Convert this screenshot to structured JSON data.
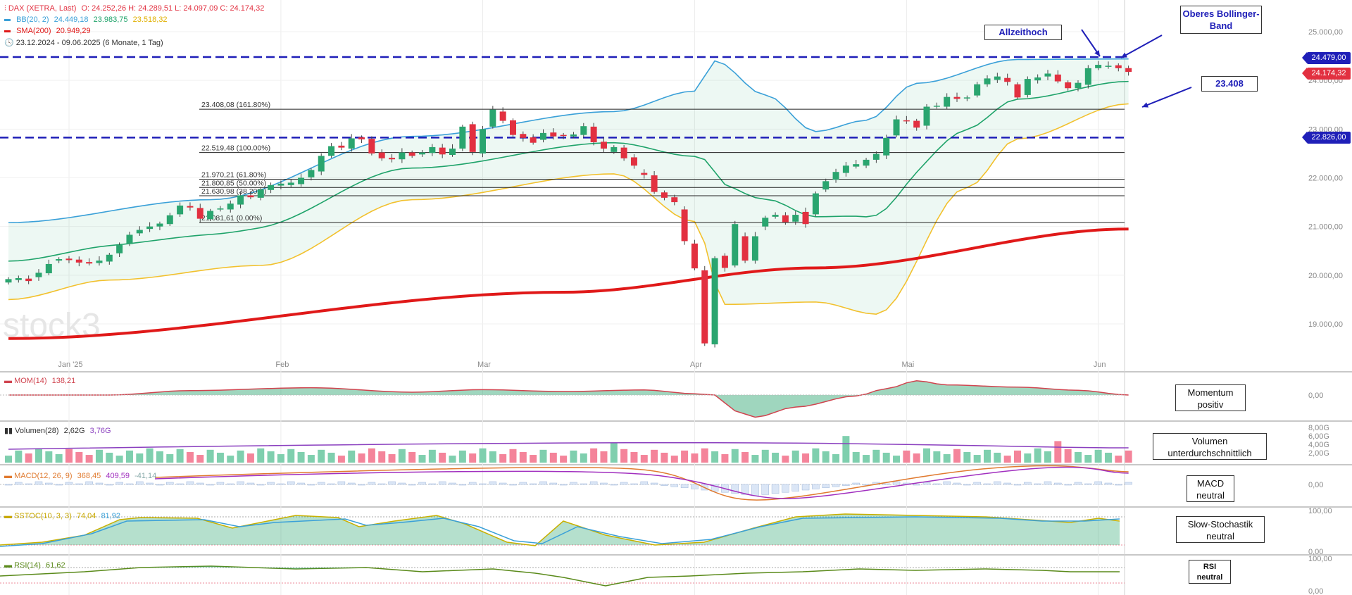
{
  "header": {
    "instrument": "DAX (XETRA, Last)",
    "ohlc": "O: 24.252,26  H: 24.289,51  L: 24.097,09  C: 24.174,32",
    "bb_label": "BB(20, 2)",
    "bb_values": [
      "24.449,18",
      "23.983,75",
      "23.518,32"
    ],
    "sma_label": "SMA(200)",
    "sma_value": "20.949,29",
    "range": "23.12.2024 - 09.06.2025  (6 Monate, 1 Tag)"
  },
  "watermark": "stock3",
  "annotations": {
    "ath": "Allzeithoch",
    "upper_bb": "Oberes Bollinger-Band",
    "level": "23.408",
    "momentum": "Momentum positiv",
    "volume": "Volumen unterdurchschnittlich",
    "macd": "MACD neutral",
    "stoch": "Slow-Stochastik neutral",
    "rsi": "RSI neutral"
  },
  "price_tags": {
    "resistance": "24.479,00",
    "last": "24.174,32",
    "support": "22.826,00"
  },
  "panels": {
    "mom": {
      "label": "MOM(14)",
      "value": "138,21"
    },
    "vol": {
      "label": "Volumen(28)",
      "v1": "2,62G",
      "v2": "3,76G"
    },
    "macd": {
      "label": "MACD(12, 26, 9)",
      "v1": "368,45",
      "v2": "409,59",
      "v3": "-41,14"
    },
    "stoch": {
      "label": "SSTOC(10, 3, 3)",
      "v1": "74,04",
      "v2": "81,92"
    },
    "rsi": {
      "label": "RSI(14)",
      "value": "61,62"
    }
  },
  "colors": {
    "up": "#2aa56f",
    "down": "#e23040",
    "bb_upper": "#3aa0d8",
    "bb_mid": "#1fa36a",
    "bb_lower": "#f2c12e",
    "sma": "#e01919",
    "hline": "#1f1fb8"
  },
  "chart_data": {
    "type": "candlestick",
    "x": [
      "2024-12-23",
      "2024-12-27",
      "2024-12-30",
      "2025-01-02",
      "2025-01-03",
      "2025-01-06",
      "2025-01-07",
      "2025-01-08",
      "2025-01-09",
      "2025-01-10",
      "2025-01-13",
      "2025-01-14",
      "2025-01-15",
      "2025-01-16",
      "2025-01-17",
      "2025-01-20",
      "2025-01-21",
      "2025-01-22",
      "2025-01-23",
      "2025-01-24",
      "2025-01-27",
      "2025-01-28",
      "2025-01-29",
      "2025-01-30",
      "2025-01-31",
      "2025-02-03",
      "2025-02-04",
      "2025-02-05",
      "2025-02-06",
      "2025-02-07",
      "2025-02-10",
      "2025-02-11",
      "2025-02-12",
      "2025-02-13",
      "2025-02-14",
      "2025-02-17",
      "2025-02-18",
      "2025-02-19",
      "2025-02-20",
      "2025-02-21",
      "2025-02-24",
      "2025-02-25",
      "2025-02-26",
      "2025-02-27",
      "2025-02-28",
      "2025-03-03",
      "2025-03-04",
      "2025-03-05",
      "2025-03-06",
      "2025-03-07",
      "2025-03-10",
      "2025-03-11",
      "2025-03-12",
      "2025-03-13",
      "2025-03-14",
      "2025-03-17",
      "2025-03-18",
      "2025-03-19",
      "2025-03-20",
      "2025-03-21",
      "2025-03-24",
      "2025-03-25",
      "2025-03-26",
      "2025-03-27",
      "2025-03-28",
      "2025-03-31",
      "2025-04-01",
      "2025-04-02",
      "2025-04-03",
      "2025-04-04",
      "2025-04-07",
      "2025-04-08",
      "2025-04-09",
      "2025-04-10",
      "2025-04-11",
      "2025-04-14",
      "2025-04-15",
      "2025-04-16",
      "2025-04-17",
      "2025-04-22",
      "2025-04-23",
      "2025-04-24",
      "2025-04-25",
      "2025-04-28",
      "2025-04-29",
      "2025-04-30",
      "2025-05-02",
      "2025-05-05",
      "2025-05-06",
      "2025-05-07",
      "2025-05-08",
      "2025-05-09",
      "2025-05-12",
      "2025-05-13",
      "2025-05-14",
      "2025-05-15",
      "2025-05-16",
      "2025-05-19",
      "2025-05-20",
      "2025-05-21",
      "2025-05-22",
      "2025-05-23",
      "2025-05-26",
      "2025-05-27",
      "2025-05-28",
      "2025-05-30",
      "2025-06-02",
      "2025-06-03",
      "2025-06-04",
      "2025-06-05",
      "2025-06-06",
      "2025-06-09"
    ],
    "open": [
      19850,
      19900,
      19930,
      19960,
      20040,
      20300,
      20340,
      20320,
      20270,
      20250,
      20280,
      20450,
      20640,
      20860,
      20950,
      21000,
      21050,
      21250,
      21420,
      21380,
      21150,
      21360,
      21350,
      21450,
      21640,
      21590,
      21750,
      21840,
      21850,
      21870,
      22010,
      22130,
      22450,
      22660,
      22600,
      22830,
      22800,
      22520,
      22410,
      22380,
      22520,
      22480,
      22510,
      22620,
      22470,
      22600,
      23100,
      22500,
      23050,
      23360,
      23180,
      22900,
      22830,
      22780,
      22930,
      22880,
      22850,
      22880,
      23050,
      22740,
      22530,
      22620,
      22420,
      22100,
      22050,
      21700,
      21600,
      21350,
      20650,
      20100,
      18580,
      20400,
      20200,
      20800,
      20300,
      21000,
      21200,
      21230,
      21100,
      21300,
      21250,
      21760,
      21960,
      22100,
      22230,
      22250,
      22370,
      22460,
      22870,
      23180,
      23170,
      23070,
      23460,
      23460,
      23660,
      23650,
      23690,
      23920,
      24010,
      24050,
      23920,
      23700,
      24000,
      24080,
      24120,
      23960,
      23840,
      23910,
      24250,
      24290,
      24310,
      24252
    ],
    "close": [
      19920,
      19940,
      19880,
      20050,
      20230,
      20330,
      20310,
      20260,
      20240,
      20300,
      20420,
      20620,
      20830,
      20930,
      21000,
      21060,
      21230,
      21430,
      21390,
      21160,
      21320,
      21370,
      21470,
      21640,
      21600,
      21760,
      21850,
      21880,
      21900,
      22000,
      22160,
      22450,
      22650,
      22620,
      22810,
      22790,
      22500,
      22400,
      22380,
      22520,
      22450,
      22520,
      22630,
      22480,
      22600,
      23050,
      22530,
      23000,
      23400,
      23170,
      22880,
      22820,
      22720,
      22920,
      22850,
      22870,
      22890,
      23060,
      22730,
      22600,
      22630,
      22400,
      22250,
      22060,
      21710,
      21590,
      21500,
      20700,
      20140,
      18600,
      20350,
      20150,
      21050,
      20300,
      20800,
      21180,
      21240,
      21090,
      21240,
      21050,
      21680,
      21930,
      22120,
      22250,
      22280,
      22370,
      22490,
      22820,
      23200,
      23160,
      23030,
      23460,
      23480,
      23660,
      23620,
      23650,
      23920,
      24040,
      24080,
      23970,
      23650,
      24030,
      24060,
      24140,
      23980,
      23840,
      23950,
      24250,
      24320,
      24300,
      24250,
      24174
    ],
    "bb_upper_points": [
      [
        0,
        21080
      ],
      [
        20,
        21550
      ],
      [
        40,
        22850
      ],
      [
        60,
        23360
      ],
      [
        68,
        23780
      ],
      [
        70,
        24400
      ],
      [
        75,
        23700
      ],
      [
        80,
        22950
      ],
      [
        85,
        23180
      ],
      [
        90,
        23940
      ],
      [
        100,
        24430
      ],
      [
        111,
        24440
      ]
    ],
    "bb_lower_points": [
      [
        0,
        19500
      ],
      [
        10,
        19900
      ],
      [
        25,
        20200
      ],
      [
        40,
        21550
      ],
      [
        60,
        22080
      ],
      [
        68,
        21100
      ],
      [
        71,
        19400
      ],
      [
        80,
        19450
      ],
      [
        86,
        19200
      ],
      [
        95,
        21800
      ],
      [
        100,
        22800
      ],
      [
        111,
        23518
      ]
    ],
    "sma200_points": [
      [
        0,
        18700
      ],
      [
        55,
        19650
      ],
      [
        80,
        20150
      ],
      [
        111,
        20949
      ]
    ],
    "fib_levels": [
      {
        "price": 23408.08,
        "label": "23.408,08 (161.80%)"
      },
      {
        "price": 22519.48,
        "label": "22.519,48 (100.00%)"
      },
      {
        "price": 21970.21,
        "label": "21.970,21 (61.80%)"
      },
      {
        "price": 21800.85,
        "label": "21.800,85 (50.00%)"
      },
      {
        "price": 21630.98,
        "label": "21.630,98 (38.20%)"
      },
      {
        "price": 21081.61,
        "label": "21.081,61 (0.00%)"
      }
    ],
    "hlines": [
      24479,
      22826
    ],
    "y_ticks": [
      "25.000,00",
      "24.000,00",
      "23.000,00",
      "22.000,00",
      "21.000,00",
      "20.000,00",
      "19.000,00"
    ],
    "y_tick_values": [
      25000,
      24000,
      23000,
      22000,
      21000,
      20000,
      19000
    ],
    "x_labels": [
      {
        "label": "Jan '25",
        "index": 6
      },
      {
        "label": "Feb",
        "index": 27
      },
      {
        "label": "Mar",
        "index": 47
      },
      {
        "label": "Apr",
        "index": 68
      },
      {
        "label": "Mai",
        "index": 89
      },
      {
        "label": "Jun",
        "index": 108
      }
    ],
    "mom_points": [
      [
        0,
        0
      ],
      [
        10,
        0
      ],
      [
        18,
        140
      ],
      [
        30,
        230
      ],
      [
        40,
        90
      ],
      [
        47,
        170
      ],
      [
        55,
        110
      ],
      [
        63,
        160
      ],
      [
        68,
        40
      ],
      [
        70,
        0
      ],
      [
        72,
        -500
      ],
      [
        74,
        -700
      ],
      [
        78,
        -380
      ],
      [
        84,
        -30
      ],
      [
        87,
        200
      ],
      [
        90,
        450
      ],
      [
        93,
        320
      ],
      [
        100,
        250
      ],
      [
        106,
        150
      ],
      [
        111,
        0
      ]
    ],
    "mom_ticks": [
      "0,00"
    ],
    "vol_ticks": [
      "8,00G",
      "6,00G",
      "4,00G",
      "2,00G"
    ],
    "macd_ticks": [
      "0,00"
    ],
    "stoch_ticks": [
      "100,00",
      "0,00"
    ],
    "rsi_ticks": [
      "100,00",
      "0,00"
    ]
  }
}
